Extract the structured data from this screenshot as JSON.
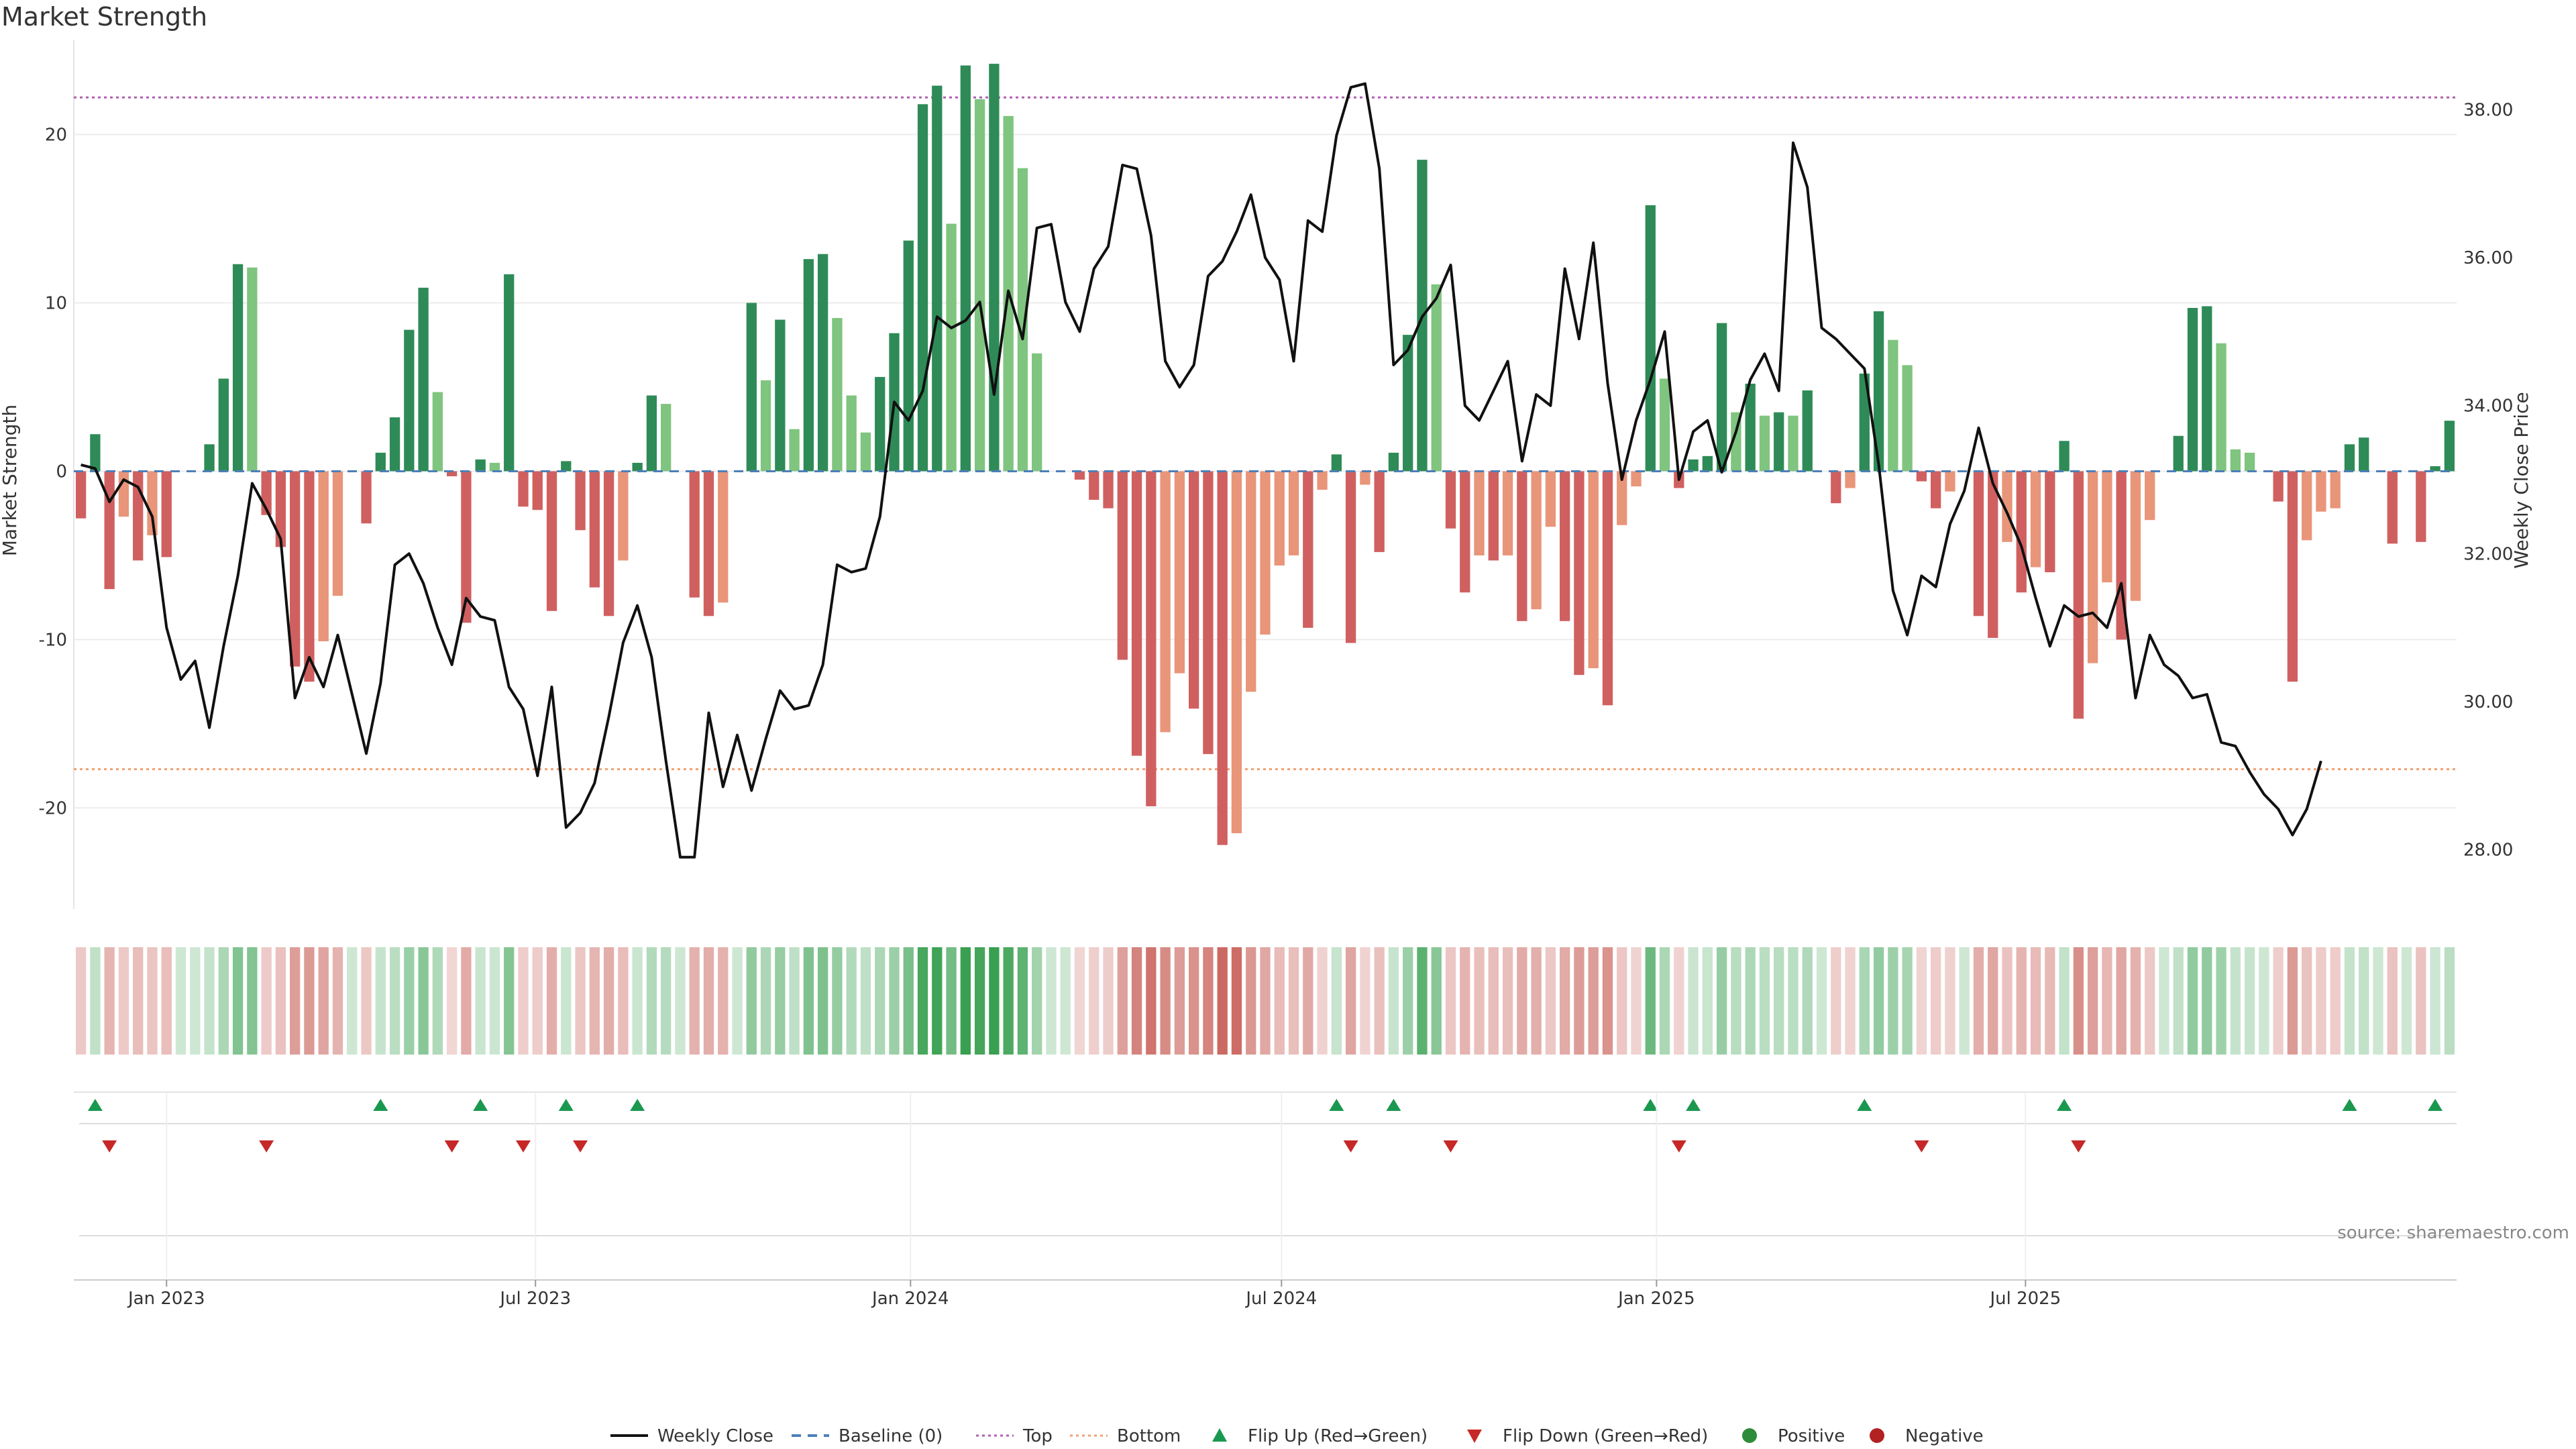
{
  "chart_data": {
    "type": "bar",
    "title": "Market Strength",
    "ylabel": "Market Strength",
    "y2label": "Weekly Close Price",
    "ylim": [
      -26,
      25
    ],
    "y2lim": [
      27.2,
      38.8
    ],
    "yticks": [
      -20,
      -10,
      0,
      10,
      20
    ],
    "y2ticks": [
      "28.00",
      "30.00",
      "32.00",
      "34.00",
      "36.00",
      "38.00"
    ],
    "x_start": "2022-11-20",
    "x_interval_days": 7,
    "xticks": [
      {
        "date": "2023-01-01",
        "label": "Jan 2023"
      },
      {
        "date": "2023-07-01",
        "label": "Jul 2023"
      },
      {
        "date": "2024-01-01",
        "label": "Jan 2024"
      },
      {
        "date": "2024-07-01",
        "label": "Jul 2024"
      },
      {
        "date": "2025-01-01",
        "label": "Jan 2025"
      },
      {
        "date": "2025-07-01",
        "label": "Jul 2025"
      }
    ],
    "top_level": 22.2,
    "bottom_level": -17.7,
    "strength": [
      -2.8,
      2.2,
      -7,
      -2.7,
      -5.3,
      -3.8,
      -5.1,
      0,
      0,
      1.6,
      5.5,
      12.3,
      12.1,
      -2.6,
      -4.5,
      -11.6,
      -12.5,
      -10.1,
      -7.4,
      0,
      -3.1,
      1.1,
      3.2,
      8.4,
      10.9,
      4.7,
      -0.3,
      -9,
      0.7,
      0.5,
      11.7,
      -2.1,
      -2.3,
      -8.3,
      0.6,
      -3.5,
      -6.9,
      -8.6,
      -5.3,
      0.5,
      4.5,
      4,
      0,
      -7.5,
      -8.6,
      -7.8,
      0,
      10,
      5.4,
      9,
      2.5,
      12.6,
      12.9,
      9.1,
      4.5,
      2.3,
      5.6,
      8.2,
      13.7,
      21.8,
      22.9,
      14.7,
      24.1,
      22.1,
      24.2,
      21.1,
      18,
      7,
      0,
      0,
      -0.5,
      -1.7,
      -2.2,
      -11.2,
      -16.9,
      -19.9,
      -15.5,
      -12,
      -14.1,
      -16.8,
      -22.2,
      -21.5,
      -13.1,
      -9.7,
      -5.6,
      -5,
      -9.3,
      -1.1,
      1,
      -10.2,
      -0.8,
      -4.8,
      1.1,
      8.1,
      18.5,
      11.1,
      -3.4,
      -7.2,
      -5,
      -5.3,
      -5,
      -8.9,
      -8.2,
      -3.3,
      -8.9,
      -12.1,
      -11.7,
      -13.9,
      -3.2,
      -0.9,
      15.8,
      5.5,
      -1,
      0.7,
      0.9,
      8.8,
      3.5,
      5.2,
      3.3,
      3.5,
      3.3,
      4.8,
      0,
      -1.9,
      -1,
      5.8,
      9.5,
      7.8,
      6.3,
      -0.6,
      -2.2,
      -1.2,
      0,
      -8.6,
      -9.9,
      -4.2,
      -7.2,
      -5.7,
      -6,
      1.8,
      -14.7,
      -11.4,
      -6.6,
      -10,
      -7.7,
      -2.9,
      0,
      2.1,
      9.7,
      9.8,
      7.6,
      1.3,
      1.1,
      0,
      -1.8,
      -12.5,
      -4.1,
      -2.4,
      -2.2,
      1.6,
      2,
      0,
      -4.3,
      0,
      -4.2,
      0.3,
      3
    ],
    "close": [
      33.2,
      33.15,
      32.7,
      33.0,
      32.9,
      32.5,
      31.0,
      30.3,
      30.55,
      29.65,
      30.75,
      31.7,
      32.95,
      32.6,
      32.2,
      30.05,
      30.6,
      30.2,
      30.9,
      30.1,
      29.3,
      30.25,
      31.85,
      32.0,
      31.6,
      31.0,
      30.5,
      31.4,
      31.15,
      31.1,
      30.2,
      29.9,
      29.0,
      30.2,
      28.3,
      28.5,
      28.9,
      29.8,
      30.8,
      31.3,
      30.6,
      29.2,
      27.9,
      27.9,
      29.85,
      28.85,
      29.55,
      28.8,
      29.5,
      30.15,
      29.9,
      29.95,
      30.5,
      31.85,
      31.75,
      31.8,
      32.5,
      34.05,
      33.8,
      34.2,
      35.2,
      35.05,
      35.15,
      35.4,
      34.15,
      35.55,
      34.9,
      36.4,
      36.45,
      35.4,
      35.0,
      35.85,
      36.15,
      37.25,
      37.2,
      36.3,
      34.6,
      34.25,
      34.55,
      35.75,
      35.95,
      36.35,
      36.85,
      36.0,
      35.7,
      34.6,
      36.5,
      36.35,
      37.65,
      38.3,
      38.35,
      37.2,
      34.55,
      34.75,
      35.2,
      35.45,
      35.9,
      34.0,
      33.8,
      34.2,
      34.6,
      33.25,
      34.15,
      34.0,
      35.85,
      34.9,
      36.2,
      34.3,
      33.0,
      33.8,
      34.35,
      35.0,
      33.0,
      33.65,
      33.8,
      33.1,
      33.65,
      34.35,
      34.7,
      34.2,
      37.55,
      36.95,
      35.05,
      34.9,
      34.7,
      34.5,
      33.2,
      31.5,
      30.9,
      31.7,
      31.55,
      32.4,
      32.85,
      33.7,
      32.95,
      32.55,
      32.1,
      31.4,
      30.75,
      31.3,
      31.15,
      31.2,
      31.0,
      31.6,
      30.05,
      30.9,
      30.5,
      30.35,
      30.05,
      30.1,
      29.45,
      29.4,
      29.05,
      28.75,
      28.55,
      28.2,
      28.55,
      29.2
    ]
  },
  "legend": {
    "items": [
      {
        "label": "Weekly Close",
        "kind": "line",
        "color": "#111111"
      },
      {
        "label": "Baseline (0)",
        "kind": "dash",
        "color": "#4d7fb8"
      },
      {
        "label": "Top",
        "kind": "dot",
        "color": "#b05fb0"
      },
      {
        "label": "Bottom",
        "kind": "dot",
        "color": "#f0a070"
      },
      {
        "label": "Flip Up (Red→Green)",
        "kind": "tri-up",
        "color": "#1a9850"
      },
      {
        "label": "Flip Down (Green→Red)",
        "kind": "tri-down",
        "color": "#c62828"
      },
      {
        "label": "Positive",
        "kind": "circle",
        "color": "#2e8b3a"
      },
      {
        "label": "Negative",
        "kind": "circle",
        "color": "#b22222"
      }
    ]
  },
  "source": "source: sharemaestro.com",
  "colors": {
    "strong_up": "#2e8b57",
    "weak_up": "#7fc47f",
    "strong_down": "#d06060",
    "weak_down": "#e8957a",
    "flip_up": "#1a9850",
    "flip_down": "#c62828"
  }
}
